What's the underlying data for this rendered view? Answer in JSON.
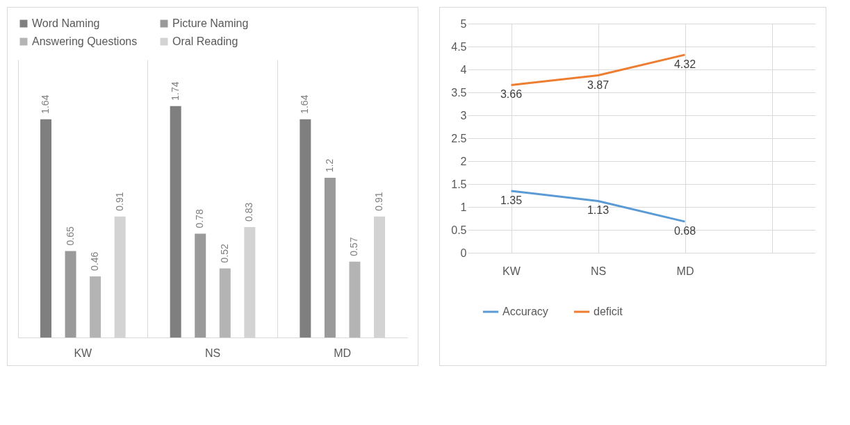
{
  "chart_data": [
    {
      "type": "bar",
      "categories": [
        "KW",
        "NS",
        "MD"
      ],
      "series": [
        {
          "name": "Word Naming",
          "color": "#7f7f7f",
          "values": [
            1.64,
            1.74,
            1.64
          ]
        },
        {
          "name": "Picture Naming",
          "color": "#9a9a9a",
          "values": [
            0.65,
            0.78,
            1.2
          ]
        },
        {
          "name": "Answering Questions",
          "color": "#b4b4b4",
          "values": [
            0.46,
            0.52,
            0.57
          ]
        },
        {
          "name": "Oral Reading",
          "color": "#d3d3d3",
          "values": [
            0.91,
            0.83,
            0.91
          ]
        }
      ],
      "data_labels": true,
      "legend": "top",
      "grid": "x"
    },
    {
      "type": "line",
      "categories": [
        "KW",
        "NS",
        "MD",
        null
      ],
      "series": [
        {
          "name": "Accuracy",
          "color": "#5b9bd5",
          "values": [
            1.35,
            1.13,
            0.68,
            null
          ]
        },
        {
          "name": "deficit",
          "color": "#ed7d31",
          "values": [
            3.66,
            3.87,
            4.32,
            null
          ]
        }
      ],
      "ylim": [
        0,
        5
      ],
      "yticks": [
        0,
        0.5,
        1,
        1.5,
        2,
        2.5,
        3,
        3.5,
        4,
        4.5,
        5
      ],
      "data_labels": true,
      "legend": "bottom",
      "grid": true
    }
  ]
}
